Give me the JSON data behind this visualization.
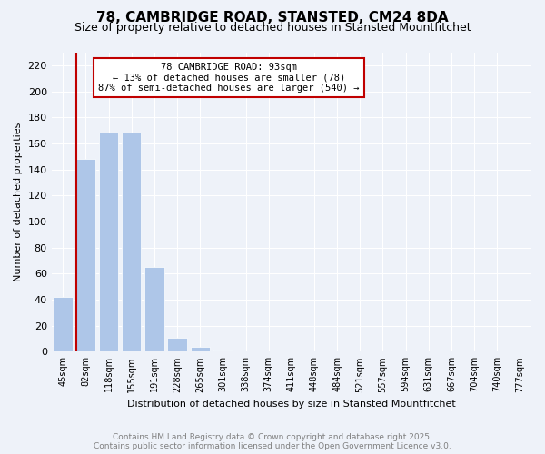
{
  "title": "78, CAMBRIDGE ROAD, STANSTED, CM24 8DA",
  "subtitle": "Size of property relative to detached houses in Stansted Mountfitchet",
  "xlabel": "Distribution of detached houses by size in Stansted Mountfitchet",
  "ylabel": "Number of detached properties",
  "footnote1": "Contains HM Land Registry data © Crown copyright and database right 2025.",
  "footnote2": "Contains public sector information licensed under the Open Government Licence v3.0.",
  "categories": [
    "45sqm",
    "82sqm",
    "118sqm",
    "155sqm",
    "191sqm",
    "228sqm",
    "265sqm",
    "301sqm",
    "338sqm",
    "374sqm",
    "411sqm",
    "448sqm",
    "484sqm",
    "521sqm",
    "557sqm",
    "594sqm",
    "631sqm",
    "667sqm",
    "704sqm",
    "740sqm",
    "777sqm"
  ],
  "values": [
    42,
    148,
    168,
    168,
    65,
    11,
    4,
    1,
    0,
    0,
    0,
    0,
    0,
    0,
    0,
    0,
    0,
    0,
    0,
    0,
    0
  ],
  "bar_color": "#aec6e8",
  "highlight_color": "#c00000",
  "vline_x_index": 1,
  "annotation_line1": "78 CAMBRIDGE ROAD: 93sqm",
  "annotation_line2": "← 13% of detached houses are smaller (78)",
  "annotation_line3": "87% of semi-detached houses are larger (540) →",
  "ylim": [
    0,
    230
  ],
  "yticks": [
    0,
    20,
    40,
    60,
    80,
    100,
    120,
    140,
    160,
    180,
    200,
    220
  ],
  "title_fontsize": 11,
  "subtitle_fontsize": 9,
  "annotation_fontsize": 7.5,
  "footnote_fontsize": 6.5,
  "background_color": "#eef2f9"
}
